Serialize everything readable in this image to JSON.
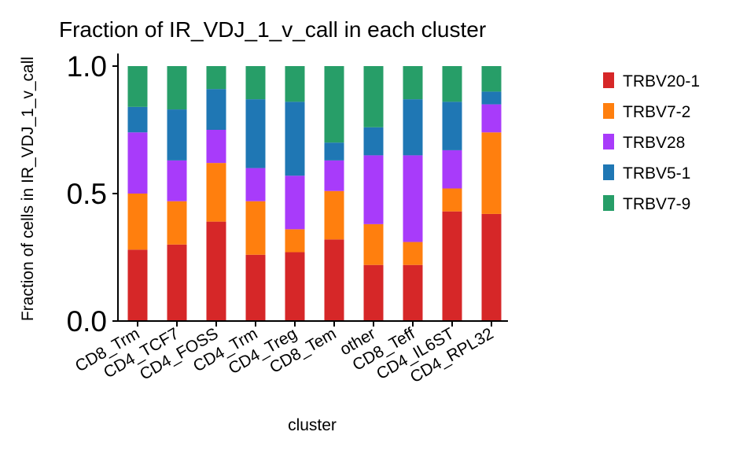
{
  "chart_data": {
    "type": "bar",
    "stacked": true,
    "title": "Fraction of IR_VDJ_1_v_call in each cluster",
    "xlabel": "cluster",
    "ylabel": "Fraction of cells in IR_VDJ_1_v_call",
    "ylim": [
      0,
      1.04
    ],
    "yticks": [
      0.0,
      0.5,
      1.0
    ],
    "ytick_labels": [
      "0.0",
      "0.5",
      "1.0"
    ],
    "grid": false,
    "legend_position": "right",
    "categories": [
      "CD8_Trm",
      "CD4_TCF7",
      "CD4_FOSS",
      "CD4_Trm",
      "CD4_Treg",
      "CD8_Tem",
      "other",
      "CD8_Teff",
      "CD4_IL6ST",
      "CD4_RPL32"
    ],
    "series": [
      {
        "name": "TRBV20-1",
        "color": "#d62728",
        "values": [
          0.28,
          0.3,
          0.39,
          0.26,
          0.27,
          0.32,
          0.22,
          0.22,
          0.43,
          0.42
        ]
      },
      {
        "name": "TRBV7-2",
        "color": "#ff7f0e",
        "values": [
          0.22,
          0.17,
          0.23,
          0.21,
          0.09,
          0.19,
          0.16,
          0.09,
          0.09,
          0.32
        ]
      },
      {
        "name": "TRBV28",
        "color": "#a83bfa",
        "values": [
          0.24,
          0.16,
          0.13,
          0.13,
          0.21,
          0.12,
          0.27,
          0.34,
          0.15,
          0.11
        ]
      },
      {
        "name": "TRBV5-1",
        "color": "#1f77b4",
        "values": [
          0.1,
          0.2,
          0.16,
          0.27,
          0.29,
          0.07,
          0.11,
          0.22,
          0.19,
          0.05
        ]
      },
      {
        "name": "TRBV7-9",
        "color": "#279e68",
        "values": [
          0.16,
          0.17,
          0.09,
          0.13,
          0.14,
          0.3,
          0.24,
          0.13,
          0.14,
          0.1
        ]
      }
    ]
  }
}
